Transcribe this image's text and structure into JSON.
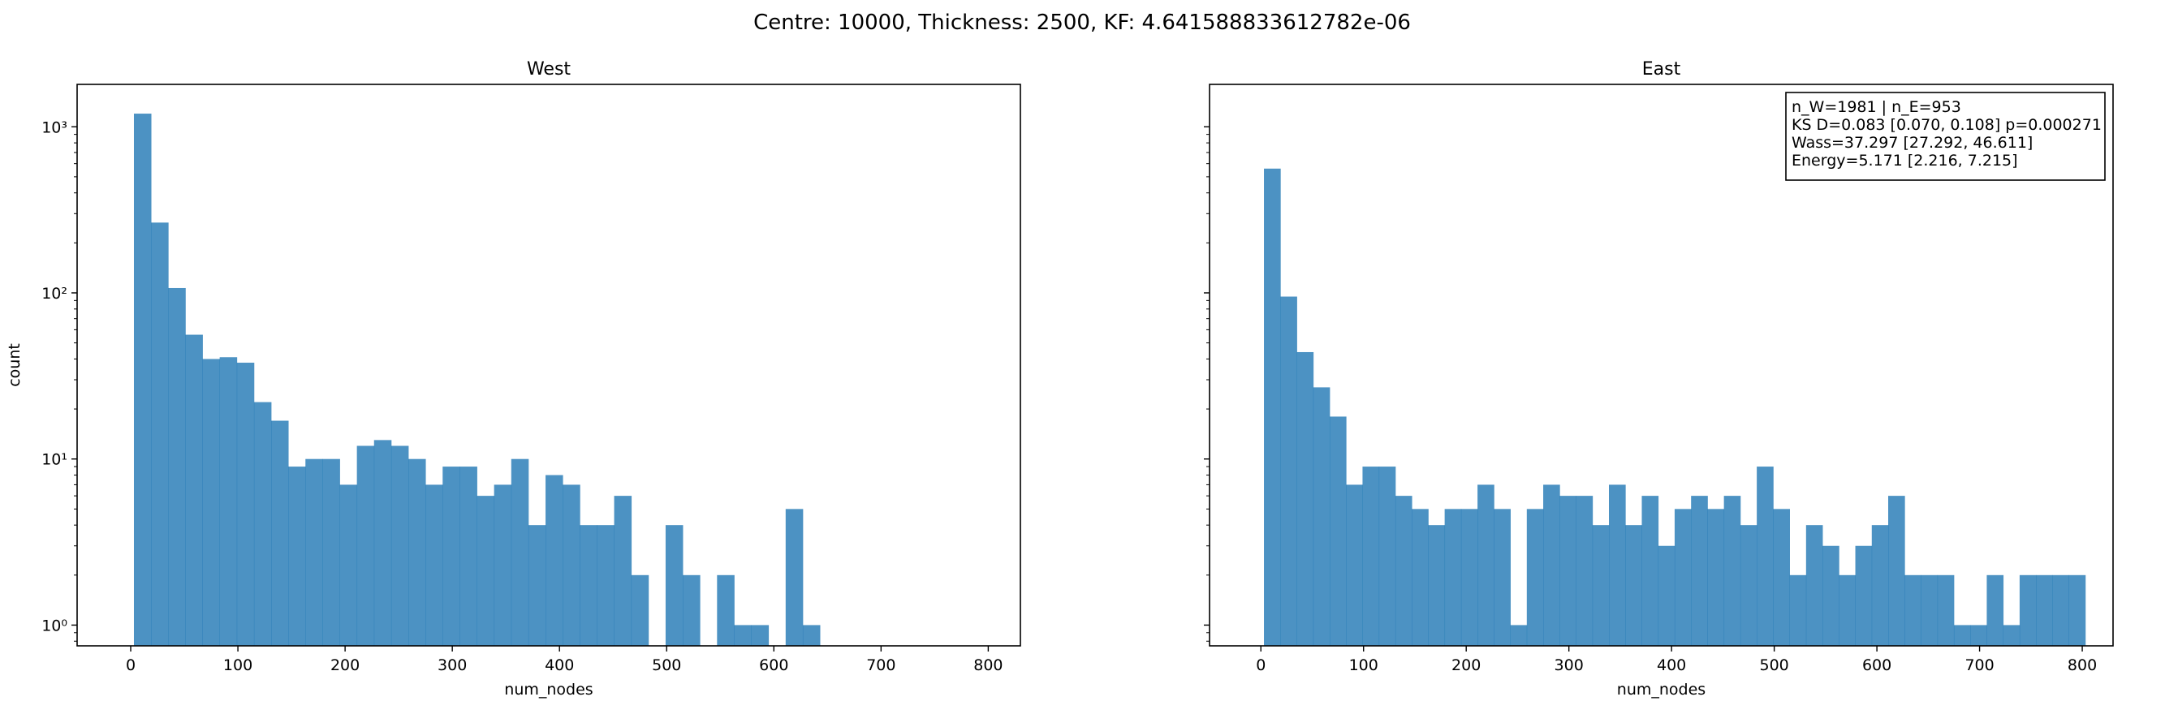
{
  "suptitle": "Centre: 10000, Thickness: 2500, KF: 4.641588833612782e-06",
  "bar_color": "#1f77b4",
  "chart_data": [
    {
      "type": "bar",
      "title": "West",
      "xlabel": "num_nodes",
      "ylabel": "count",
      "y_scale": "log",
      "xlim": [
        -50,
        830
      ],
      "ylim": [
        0.75,
        1800
      ],
      "x_ticks": [
        0,
        100,
        200,
        300,
        400,
        500,
        600,
        700,
        800
      ],
      "y_ticks": [
        {
          "value": 1,
          "label": "10⁰"
        },
        {
          "value": 10,
          "label": "10¹"
        },
        {
          "value": 100,
          "label": "10²"
        },
        {
          "value": 1000,
          "label": "10³"
        }
      ],
      "bin_start": 3,
      "bin_width": 16,
      "counts": [
        1200,
        265,
        107,
        56,
        40,
        41,
        38,
        22,
        17,
        9,
        10,
        10,
        7,
        12,
        13,
        12,
        10,
        7,
        9,
        9,
        6,
        7,
        10,
        4,
        8,
        7,
        4,
        4,
        6,
        2,
        0,
        4,
        2,
        0,
        2,
        1,
        1,
        0,
        5,
        1
      ]
    },
    {
      "type": "bar",
      "title": "East",
      "xlabel": "num_nodes",
      "ylabel": "",
      "y_scale": "log",
      "xlim": [
        -50,
        830
      ],
      "ylim": [
        0.75,
        1800
      ],
      "x_ticks": [
        0,
        100,
        200,
        300,
        400,
        500,
        600,
        700,
        800
      ],
      "y_ticks": [
        {
          "value": 1,
          "label": ""
        },
        {
          "value": 10,
          "label": ""
        },
        {
          "value": 100,
          "label": ""
        },
        {
          "value": 1000,
          "label": ""
        }
      ],
      "bin_start": 3,
      "bin_width": 16,
      "counts": [
        560,
        95,
        44,
        27,
        18,
        7,
        9,
        9,
        6,
        5,
        4,
        5,
        5,
        7,
        5,
        1,
        5,
        7,
        6,
        6,
        4,
        7,
        4,
        6,
        3,
        5,
        6,
        5,
        6,
        4,
        9,
        5,
        2,
        4,
        3,
        2,
        3,
        4,
        6,
        2,
        2,
        2,
        1,
        1,
        2,
        1,
        2,
        2,
        2,
        2
      ],
      "annotation": [
        "n_W=1981 | n_E=953",
        "KS D=0.083 [0.070, 0.108]  p=0.000271",
        "Wass=37.297 [27.292, 46.611]",
        "Energy=5.171 [2.216, 7.215]"
      ]
    }
  ]
}
